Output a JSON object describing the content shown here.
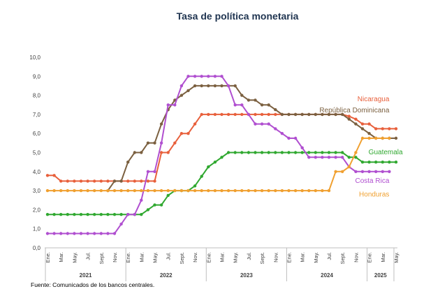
{
  "chart_data": {
    "type": "line",
    "title": "Tasa de política monetaria",
    "source": "Fuente: Comunicados de los bancos centrales.",
    "ylim": [
      0,
      10
    ],
    "yticks": [
      "0,0",
      "1,0",
      "2,0",
      "3,0",
      "4,0",
      "5,0",
      "6,0",
      "7,0",
      "8,0",
      "9,0",
      "10,0"
    ],
    "xlim": [
      0,
      52
    ],
    "month_ticks": [
      {
        "i": 0,
        "label": "Ene."
      },
      {
        "i": 2,
        "label": "Mar."
      },
      {
        "i": 4,
        "label": "May."
      },
      {
        "i": 6,
        "label": "Jul."
      },
      {
        "i": 8,
        "label": "Sept."
      },
      {
        "i": 10,
        "label": "Nov."
      },
      {
        "i": 12,
        "label": "Ene."
      },
      {
        "i": 14,
        "label": "Mar."
      },
      {
        "i": 16,
        "label": "May."
      },
      {
        "i": 18,
        "label": "Jul."
      },
      {
        "i": 20,
        "label": "Sept."
      },
      {
        "i": 22,
        "label": "Nov."
      },
      {
        "i": 24,
        "label": "Ene."
      },
      {
        "i": 26,
        "label": "Mar."
      },
      {
        "i": 28,
        "label": "May."
      },
      {
        "i": 30,
        "label": "Jul."
      },
      {
        "i": 32,
        "label": "Sept."
      },
      {
        "i": 34,
        "label": "Nov."
      },
      {
        "i": 36,
        "label": "Ene."
      },
      {
        "i": 38,
        "label": "Mar."
      },
      {
        "i": 40,
        "label": "May."
      },
      {
        "i": 42,
        "label": "Jul."
      },
      {
        "i": 44,
        "label": "Sept."
      },
      {
        "i": 46,
        "label": "Nov."
      },
      {
        "i": 48,
        "label": "Ene."
      },
      {
        "i": 50,
        "label": "Mar."
      },
      {
        "i": 52,
        "label": "May."
      }
    ],
    "years": [
      {
        "label": "2021",
        "from": 0,
        "to": 12
      },
      {
        "label": "2022",
        "from": 12,
        "to": 24
      },
      {
        "label": "2023",
        "from": 24,
        "to": 36
      },
      {
        "label": "2024",
        "from": 36,
        "to": 48
      },
      {
        "label": "2025",
        "from": 48,
        "to": 52
      }
    ],
    "series": [
      {
        "name": "Nicaragua",
        "color": "#e8603c",
        "label_at": [
          51,
          7.7
        ],
        "values": [
          3.8,
          3.8,
          3.5,
          3.5,
          3.5,
          3.5,
          3.5,
          3.5,
          3.5,
          3.5,
          3.5,
          3.5,
          3.5,
          3.5,
          3.5,
          3.5,
          3.5,
          5.0,
          5.0,
          5.5,
          6.0,
          6.0,
          6.5,
          7.0,
          7.0,
          7.0,
          7.0,
          7.0,
          7.0,
          7.0,
          7.0,
          7.0,
          7.0,
          7.0,
          7.0,
          7.0,
          7.0,
          7.0,
          7.0,
          7.0,
          7.0,
          7.0,
          7.0,
          7.0,
          7.0,
          6.9,
          6.75,
          6.5,
          6.5,
          6.25,
          6.25,
          6.25,
          6.25
        ]
      },
      {
        "name": "República Dominicana",
        "color": "#7b6040",
        "label_at": [
          51,
          7.1
        ],
        "values": [
          null,
          null,
          null,
          null,
          null,
          null,
          null,
          null,
          null,
          3.0,
          3.5,
          3.5,
          4.5,
          5.0,
          5.0,
          5.5,
          5.5,
          6.5,
          7.25,
          7.75,
          8.0,
          8.25,
          8.5,
          8.5,
          8.5,
          8.5,
          8.5,
          8.5,
          8.5,
          8.0,
          7.75,
          7.75,
          7.5,
          7.5,
          7.25,
          7.0,
          7.0,
          7.0,
          7.0,
          7.0,
          7.0,
          7.0,
          7.0,
          7.0,
          7.0,
          6.75,
          6.5,
          6.25,
          6.0,
          5.75,
          5.75,
          5.75,
          5.75
        ]
      },
      {
        "name": "Guatemala",
        "color": "#30a830",
        "label_at": [
          53,
          4.9
        ],
        "values": [
          1.75,
          1.75,
          1.75,
          1.75,
          1.75,
          1.75,
          1.75,
          1.75,
          1.75,
          1.75,
          1.75,
          1.75,
          1.75,
          1.75,
          1.75,
          2.0,
          2.25,
          2.25,
          2.75,
          3.0,
          3.0,
          3.0,
          3.25,
          3.75,
          4.25,
          4.5,
          4.75,
          5.0,
          5.0,
          5.0,
          5.0,
          5.0,
          5.0,
          5.0,
          5.0,
          5.0,
          5.0,
          5.0,
          5.0,
          5.0,
          5.0,
          5.0,
          5.0,
          5.0,
          5.0,
          4.75,
          4.75,
          4.5,
          4.5,
          4.5,
          4.5,
          4.5,
          4.5
        ]
      },
      {
        "name": "Costa Rica",
        "color": "#b04fd0",
        "label_at": [
          51,
          3.4
        ],
        "values": [
          0.75,
          0.75,
          0.75,
          0.75,
          0.75,
          0.75,
          0.75,
          0.75,
          0.75,
          0.75,
          0.75,
          1.25,
          1.75,
          1.75,
          2.5,
          4.0,
          4.0,
          5.5,
          7.5,
          7.5,
          8.5,
          9.0,
          9.0,
          9.0,
          9.0,
          9.0,
          9.0,
          8.5,
          7.5,
          7.5,
          7.0,
          6.5,
          6.5,
          6.5,
          6.25,
          6.0,
          5.75,
          5.75,
          5.25,
          4.75,
          4.75,
          4.75,
          4.75,
          4.75,
          4.75,
          4.25,
          4.0,
          4.0,
          4.0,
          4.0,
          4.0,
          4.0,
          null
        ]
      },
      {
        "name": "Honduras",
        "color": "#f0a030",
        "label_at": [
          51,
          2.7
        ],
        "values": [
          3.0,
          3.0,
          3.0,
          3.0,
          3.0,
          3.0,
          3.0,
          3.0,
          3.0,
          3.0,
          3.0,
          3.0,
          3.0,
          3.0,
          3.0,
          3.0,
          3.0,
          3.0,
          3.0,
          3.0,
          3.0,
          3.0,
          3.0,
          3.0,
          3.0,
          3.0,
          3.0,
          3.0,
          3.0,
          3.0,
          3.0,
          3.0,
          3.0,
          3.0,
          3.0,
          3.0,
          3.0,
          3.0,
          3.0,
          3.0,
          3.0,
          3.0,
          3.0,
          4.0,
          4.0,
          4.25,
          5.0,
          5.75,
          5.75,
          5.75,
          5.75,
          5.75,
          null
        ]
      }
    ]
  }
}
